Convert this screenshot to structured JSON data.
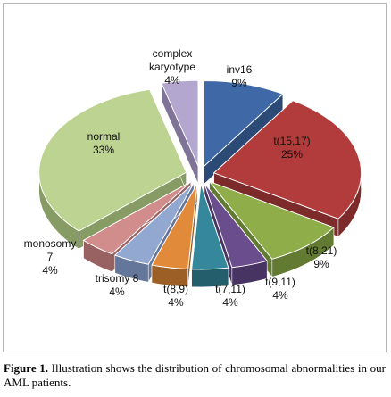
{
  "chart_data": {
    "type": "pie",
    "style": "3d-exploded",
    "slices": [
      {
        "name": "inv16",
        "value": 9,
        "pct_label": "9%",
        "color": "#3f69a6",
        "side": "#2c4a76"
      },
      {
        "name": "t(15,17)",
        "value": 25,
        "pct_label": "25%",
        "color": "#b23c3c",
        "side": "#7d2a2a"
      },
      {
        "name": "t(8,21)",
        "value": 9,
        "pct_label": "9%",
        "color": "#8fae4a",
        "side": "#627a31"
      },
      {
        "name": "t(9,11)",
        "value": 4,
        "pct_label": "4%",
        "color": "#6a4d8c",
        "side": "#483462"
      },
      {
        "name": "t(7,11)",
        "value": 4,
        "pct_label": "4%",
        "color": "#35889c",
        "side": "#245e6d"
      },
      {
        "name": "t(8,9)",
        "value": 4,
        "pct_label": "4%",
        "color": "#e08a3a",
        "side": "#9c5f26"
      },
      {
        "name": "trisomy 8",
        "value": 4,
        "pct_label": "4%",
        "color": "#92a8d1",
        "side": "#64769a"
      },
      {
        "name": "monosomy 7",
        "value": 4,
        "pct_label": "4%",
        "color": "#d18c8c",
        "side": "#996262"
      },
      {
        "name": "normal",
        "value": 33,
        "pct_label": "33%",
        "color": "#bcd391",
        "side": "#879b64"
      },
      {
        "name": "complex karyotype",
        "value": 4,
        "pct_label": "4%",
        "color": "#b3a6cf",
        "side": "#7f7497"
      }
    ]
  },
  "caption": {
    "label": "Figure 1.",
    "text": " Illustration shows the distribution of chromosomal abnormalities in our AML patients."
  }
}
